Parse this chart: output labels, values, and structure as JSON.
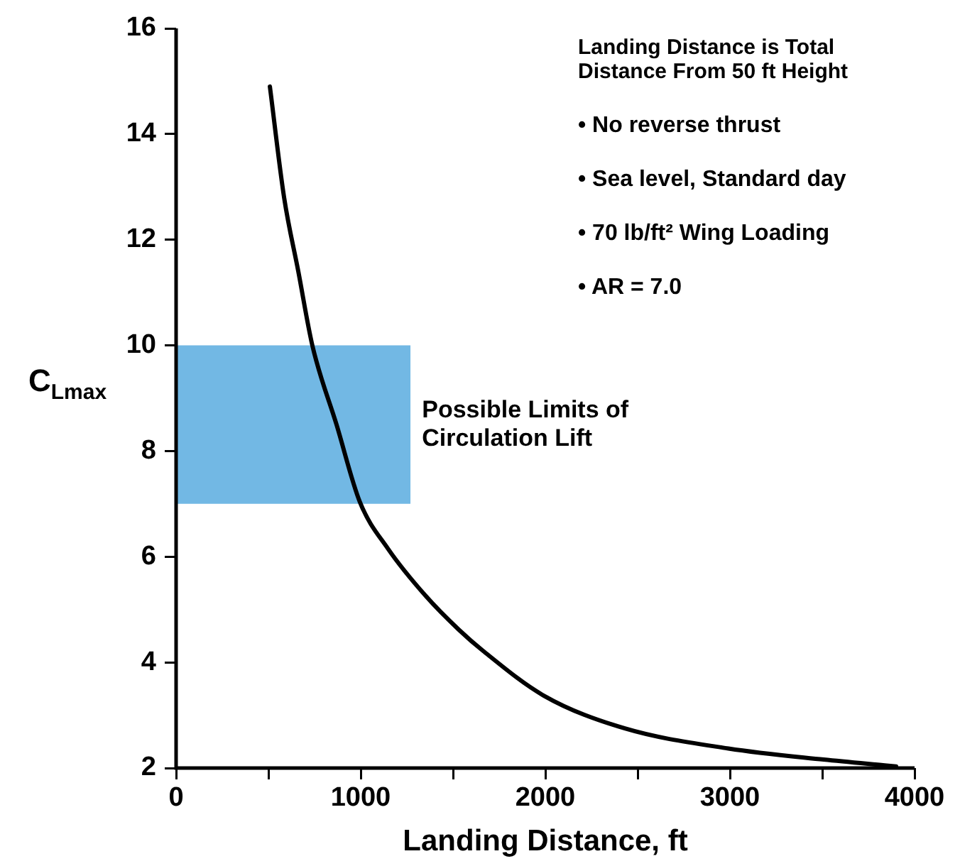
{
  "chart_data": {
    "type": "line",
    "xlabel": "Landing Distance, ft",
    "ylabel": "C$_{Lmax}$",
    "x": [
      508,
      585,
      662,
      738,
      869,
      995,
      1148,
      1354,
      1531,
      1662,
      1992,
      2431,
      2992,
      3508,
      3838,
      3900
    ],
    "series": [
      {
        "color": "#000000",
        "values": [
          14.9,
          12.8,
          11.4,
          10.0,
          8.5,
          7.04,
          6.15,
          5.25,
          4.62,
          4.22,
          3.37,
          2.75,
          2.37,
          2.16,
          2.05,
          2.03
        ]
      },
      {
        "type": "area",
        "color": "#72b8e4",
        "x": [
          0,
          1270
        ],
        "values": [
          null,
          null
        ],
        "lower": [
          7,
          7
        ],
        "upper": [
          10,
          10
        ]
      }
    ],
    "xlim": [
      0,
      4000
    ],
    "ylim": [
      2,
      16
    ],
    "xticks": [
      0,
      {
        "value": 500,
        "label": null
      },
      1000,
      {
        "value": 1500,
        "label": null
      },
      2000,
      {
        "value": 2500,
        "label": null
      },
      3000,
      {
        "value": 3500,
        "label": null
      },
      4000
    ],
    "yticks": [
      2,
      4,
      6,
      8,
      10,
      12,
      14,
      16
    ],
    "annotations": [
      "Landing Distance is Total\nDistance From 50 ft Height",
      "• No reverse thrust",
      "• Sea level, Standard day",
      "• 70 lb/ft² Wing Loading",
      "• AR = 7.0",
      {
        "text": "Possible Limits of\nCirculation Lift",
        "x": 1270,
        "y": 8.5
      }
    ],
    "grid": false,
    "legend": false,
    "marker": "none",
    "line_style": "solid"
  }
}
